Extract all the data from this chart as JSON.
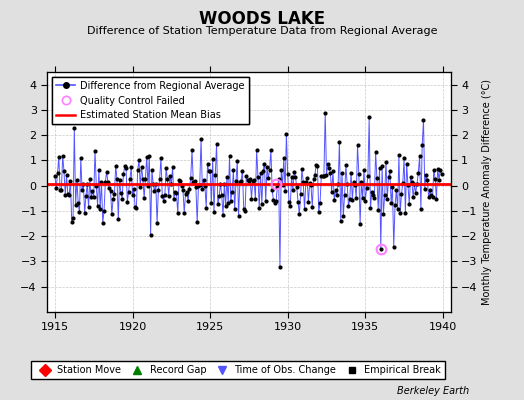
{
  "title": "WOODS LAKE",
  "subtitle": "Difference of Station Temperature Data from Regional Average",
  "ylabel": "Monthly Temperature Anomaly Difference (°C)",
  "xlim": [
    1914.5,
    1940.5
  ],
  "ylim": [
    -5,
    4.5
  ],
  "yticks": [
    -4,
    -3,
    -2,
    -1,
    0,
    1,
    2,
    3,
    4
  ],
  "xticks": [
    1915,
    1920,
    1925,
    1930,
    1935,
    1940
  ],
  "mean_bias": 0.07,
  "bias_color": "#FF0000",
  "line_color": "#5555FF",
  "marker_color": "#000000",
  "qc_fail_color": "#FF80FF",
  "bg_color": "#E0E0E0",
  "plot_bg": "#FFFFFF",
  "qc_fail_points": [
    [
      1929.25,
      0.05
    ],
    [
      1936.0,
      -2.5
    ]
  ],
  "seed": 42,
  "title_fontsize": 12,
  "subtitle_fontsize": 8,
  "tick_fontsize": 8,
  "ylabel_fontsize": 7
}
